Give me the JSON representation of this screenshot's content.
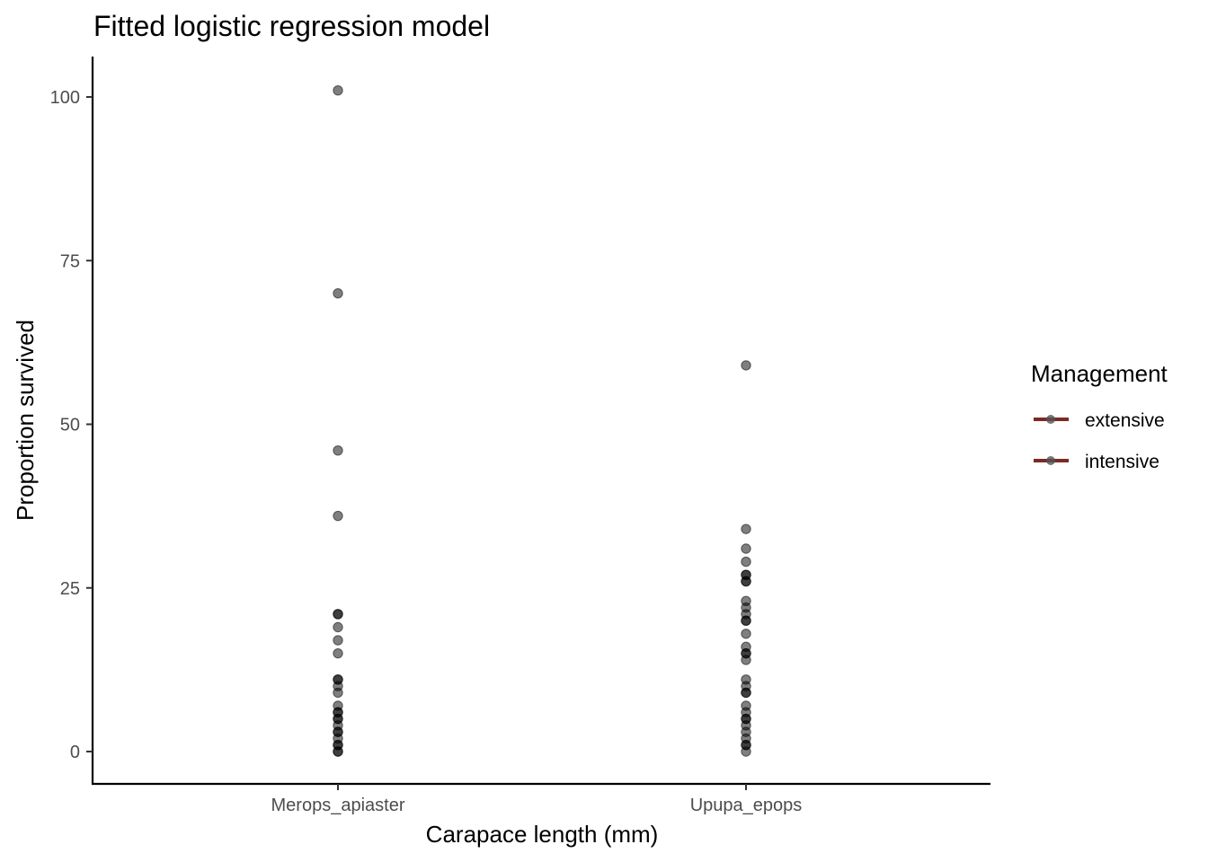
{
  "chart_data": {
    "type": "scatter",
    "title": "Fitted logistic regression model",
    "xlabel": "Carapace length (mm)",
    "ylabel": "Proportion survived",
    "categories": [
      "Merops_apiaster",
      "Upupa_epops"
    ],
    "y_ticks": [
      0,
      25,
      50,
      75,
      100
    ],
    "ylim": [
      -5,
      105
    ],
    "grid": false,
    "point_color": "#000000",
    "point_opacity": 0.5,
    "series": [
      {
        "category": "Merops_apiaster",
        "values": [
          101,
          70,
          46,
          36,
          21,
          21,
          19,
          17,
          15,
          11,
          11,
          10,
          9,
          7,
          6,
          6,
          5,
          5,
          4,
          3,
          3,
          2,
          1,
          1,
          0,
          0
        ]
      },
      {
        "category": "Upupa_epops",
        "values": [
          59,
          34,
          31,
          29,
          27,
          27,
          26,
          26,
          23,
          22,
          21,
          20,
          20,
          18,
          16,
          15,
          15,
          14,
          11,
          10,
          9,
          9,
          7,
          6,
          5,
          5,
          4,
          3,
          2,
          1,
          1,
          0
        ]
      }
    ],
    "legend": {
      "title": "Management",
      "placement": "right",
      "line_color": "#7b2a24",
      "items": [
        "extensive",
        "intensive"
      ]
    }
  }
}
